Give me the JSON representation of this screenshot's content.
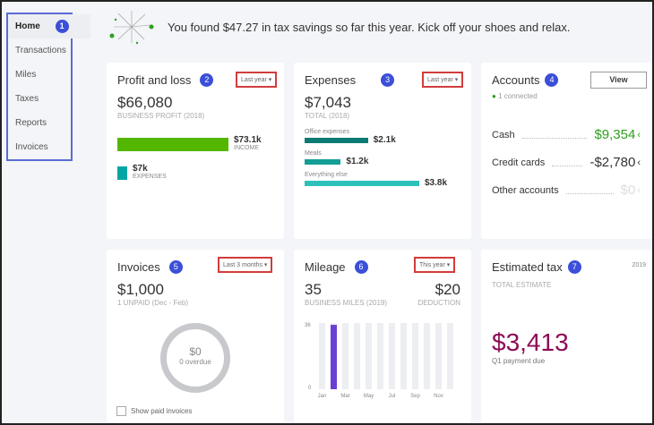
{
  "sidebar": {
    "items": [
      {
        "label": "Home",
        "active": true,
        "badge": "1"
      },
      {
        "label": "Transactions"
      },
      {
        "label": "Miles"
      },
      {
        "label": "Taxes"
      },
      {
        "label": "Reports"
      },
      {
        "label": "Invoices"
      }
    ]
  },
  "banner": {
    "text": "You found $47.27 in tax savings so far this year. Kick off your shoes and relax.",
    "icon": "fireworks-icon"
  },
  "profit": {
    "title": "Profit and loss",
    "badge": "2",
    "period": "Last year",
    "amount": "$66,080",
    "sub": "BUSINESS PROFIT (2018)",
    "income_value": "$73.1k",
    "income_label": "INCOME",
    "expenses_value": "$7k",
    "expenses_label": "EXPENSES",
    "income_color": "#53b700",
    "expense_color": "#00a6a4"
  },
  "expenses": {
    "title": "Expenses",
    "badge": "3",
    "period": "Last year",
    "amount": "$7,043",
    "sub": "TOTAL (2018)",
    "items": [
      {
        "label": "Office expenses",
        "value": "$2.1k",
        "amount": 2.1,
        "color": "#0b7b73"
      },
      {
        "label": "Meals",
        "value": "$1.2k",
        "amount": 1.2,
        "color": "#139e96"
      },
      {
        "label": "Everything else",
        "value": "$3.8k",
        "amount": 3.8,
        "color": "#2ec1b9"
      }
    ]
  },
  "accounts": {
    "title": "Accounts",
    "badge": "4",
    "view": "View",
    "connected": "1 connected",
    "rows": [
      {
        "label": "Cash",
        "value": "$9,354",
        "color": "#2ca01c"
      },
      {
        "label": "Credit cards",
        "value": "-$2,780",
        "color": "#333"
      },
      {
        "label": "Other accounts",
        "value": "$0",
        "color": "#ddd"
      }
    ]
  },
  "invoices": {
    "title": "Invoices",
    "badge": "5",
    "period": "Last 3 months",
    "amount": "$1,000",
    "sub": "1 UNPAID (Dec - Feb)",
    "ring_value": "$0",
    "ring_label": "0 overdue",
    "checkbox": "Show paid invoices"
  },
  "mileage": {
    "title": "Mileage",
    "badge": "6",
    "period": "This year",
    "miles": "35",
    "miles_label": "BUSINESS MILES (2019)",
    "deduction": "$20",
    "deduction_label": "DEDUCTION",
    "chart_data": {
      "type": "bar",
      "ylim": [
        0,
        36
      ],
      "yticks": [
        "36",
        "0"
      ],
      "categories": [
        "Jan",
        "Feb",
        "Mar",
        "Apr",
        "May",
        "Jun",
        "Jul",
        "Aug",
        "Sep",
        "Oct",
        "Nov",
        "Dec"
      ],
      "xtick_labels": [
        "Jan",
        "Mar",
        "May",
        "Jul",
        "Sep",
        "Nov"
      ],
      "values": [
        0,
        35,
        0,
        0,
        0,
        0,
        0,
        0,
        0,
        0,
        0,
        0
      ],
      "bar_color": "#6b3fd4",
      "track_color": "#eceef1"
    }
  },
  "tax": {
    "title": "Estimated tax",
    "badge": "7",
    "year": "2019",
    "sub": "TOTAL ESTIMATE",
    "amount": "$3,413",
    "note": "Q1 payment due",
    "color": "#8d0c56"
  }
}
